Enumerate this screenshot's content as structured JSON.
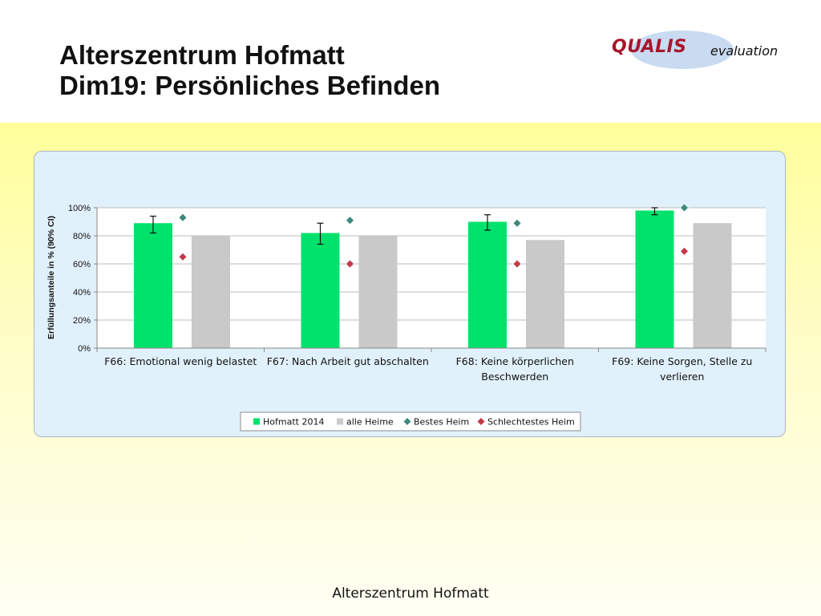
{
  "slide": {
    "title_line1": "Alterszentrum Hofmatt",
    "title_line2": "Dim19: Persönliches Befinden",
    "footer": "Alterszentrum Hofmatt"
  },
  "logo": {
    "brand": "QUALIS",
    "sub": "evaluation"
  },
  "chart_data": {
    "type": "bar",
    "ylabel": "Erfüllungsanteile in % (90% CI)",
    "ylim": [
      0,
      100
    ],
    "yticks": [
      "0%",
      "20%",
      "40%",
      "60%",
      "80%",
      "100%"
    ],
    "grid": true,
    "legend_position": "bottom",
    "categories": [
      [
        "F66: Emotional wenig belastet"
      ],
      [
        "F67: Nach Arbeit gut abschalten"
      ],
      [
        "F68: Keine körperlichen",
        "Beschwerden"
      ],
      [
        "F69: Keine Sorgen, Stelle zu",
        "verlieren"
      ]
    ],
    "series": [
      {
        "name": "Hofmatt 2014",
        "kind": "bar",
        "color": "#00e26b",
        "values": [
          89,
          82,
          90,
          98
        ],
        "ci_low": [
          82,
          74,
          84,
          95
        ],
        "ci_high": [
          94,
          89,
          95,
          100
        ]
      },
      {
        "name": "alle Heime",
        "kind": "bar",
        "color": "#c9c9c9",
        "values": [
          80,
          80,
          77,
          89
        ]
      },
      {
        "name": "Bestes Heim",
        "kind": "marker",
        "color": "#3d8a7e",
        "values": [
          93,
          91,
          89,
          100
        ]
      },
      {
        "name": "Schlechtestes Heim",
        "kind": "marker",
        "color": "#c23a4a",
        "values": [
          65,
          60,
          60,
          69
        ]
      }
    ]
  }
}
